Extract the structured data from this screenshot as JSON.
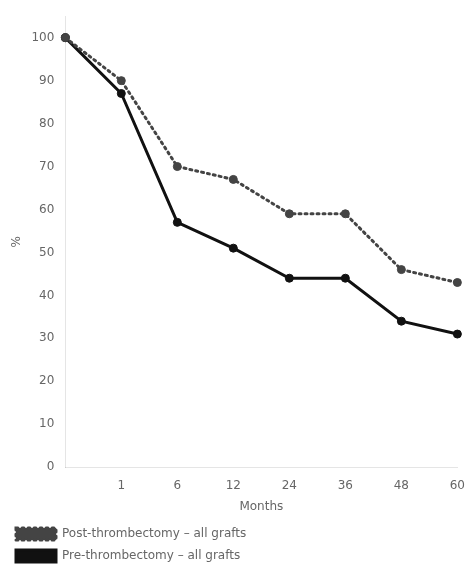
{
  "chart_data": {
    "type": "line",
    "categories": [
      null,
      "1",
      "6",
      "12",
      "24",
      "36",
      "48",
      "60"
    ],
    "series": [
      {
        "name": "Post-thrombectomy – all grafts",
        "color": "#444444",
        "line_style": "dotted",
        "marker": "circle",
        "values": [
          100,
          90,
          70,
          67,
          59,
          59,
          46,
          43
        ]
      },
      {
        "name": "Pre-thrombectomy – all grafts",
        "color": "#111111",
        "line_style": "solid",
        "marker": "circle",
        "values": [
          100,
          87,
          57,
          51,
          44,
          44,
          34,
          31
        ]
      }
    ],
    "xlabel": "Months",
    "ylabel": "%",
    "ylim": [
      0,
      105
    ],
    "yticks": [
      0,
      10,
      20,
      30,
      40,
      50,
      60,
      70,
      80,
      90,
      100
    ],
    "grid": false,
    "legend": "lower left"
  }
}
